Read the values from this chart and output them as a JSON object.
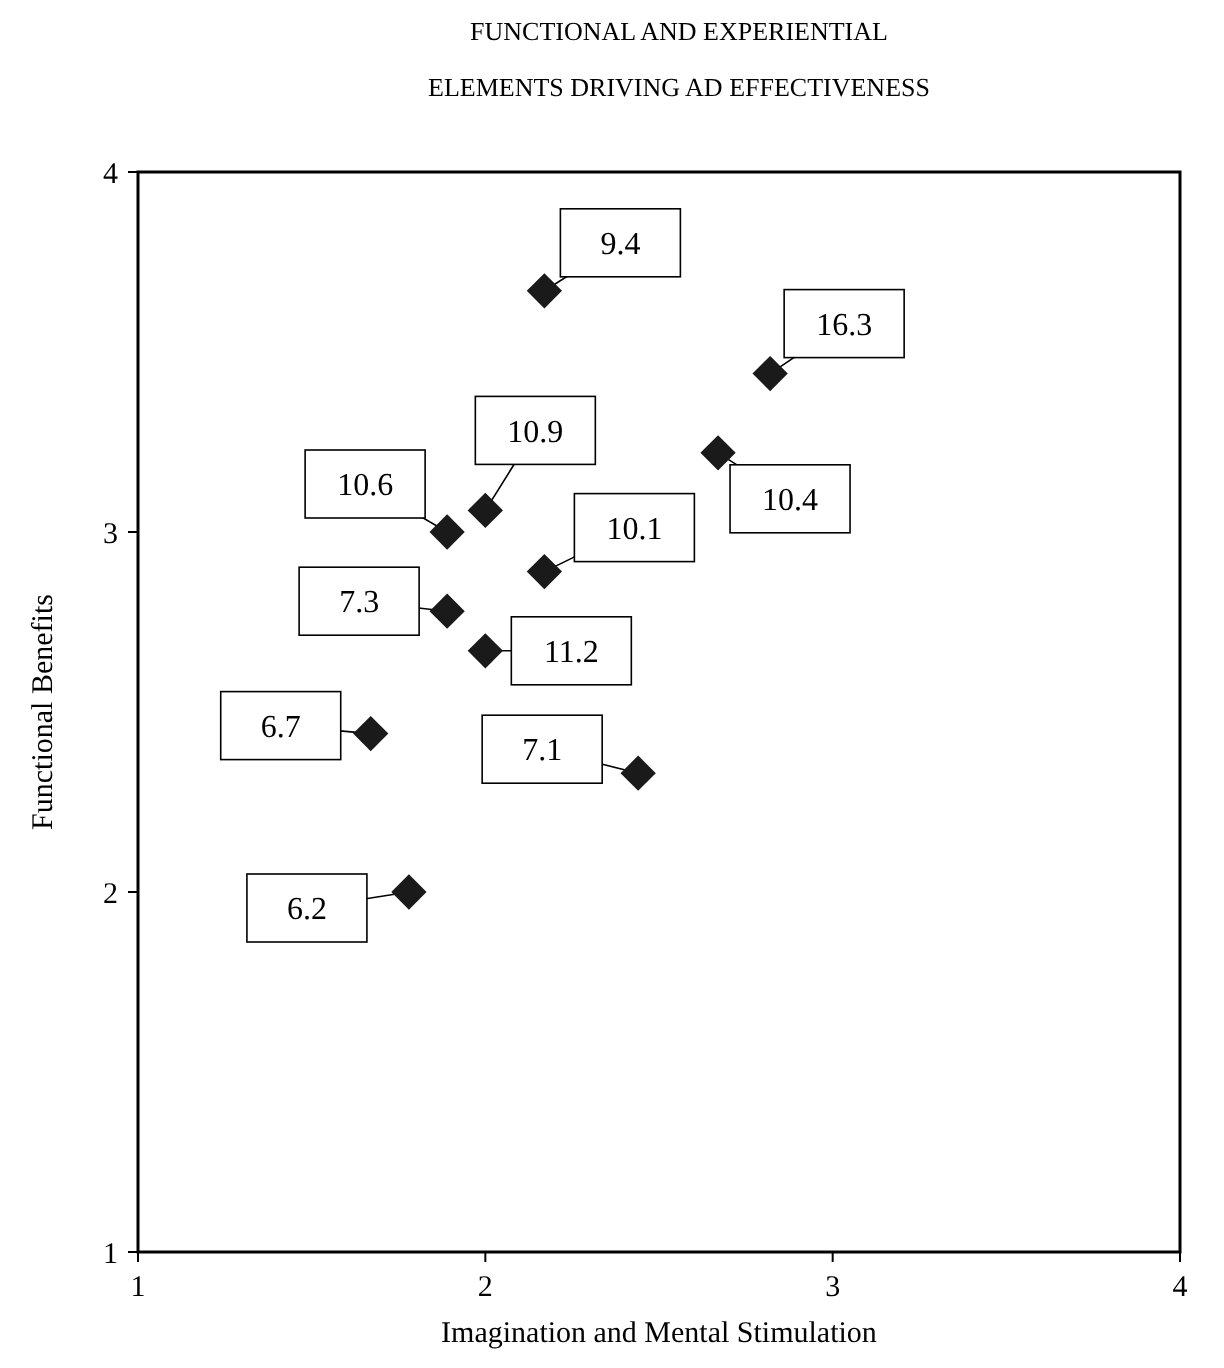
{
  "chart_data": {
    "type": "scatter",
    "title": "FUNCTIONAL AND EXPERIENTIAL ELEMENTS DRIVING AD EFFECTIVENESS",
    "xlabel": "Imagination and Mental Stimulation",
    "ylabel": "Functional Benefits",
    "x": [
      2.17,
      2.82,
      2.0,
      1.89,
      2.67,
      2.17,
      1.89,
      2.0,
      1.67,
      2.44,
      1.78
    ],
    "values": [
      3.67,
      3.44,
      3.06,
      3.0,
      3.22,
      2.89,
      2.78,
      2.67,
      2.44,
      2.33,
      2.0
    ],
    "annotations": [
      {
        "text": "9.4",
        "x": 2.17,
        "y": 3.67
      },
      {
        "text": "16.3",
        "x": 2.82,
        "y": 3.44
      },
      {
        "text": "10.9",
        "x": 2.0,
        "y": 3.06
      },
      {
        "text": "10.6",
        "x": 1.89,
        "y": 3.0
      },
      {
        "text": "10.4",
        "x": 2.67,
        "y": 3.22
      },
      {
        "text": "10.1",
        "x": 2.17,
        "y": 2.89
      },
      {
        "text": "7.3",
        "x": 1.89,
        "y": 2.78
      },
      {
        "text": "11.2",
        "x": 2.0,
        "y": 2.67
      },
      {
        "text": "6.7",
        "x": 1.67,
        "y": 2.44
      },
      {
        "text": "7.1",
        "x": 2.44,
        "y": 2.33
      },
      {
        "text": "6.2",
        "x": 1.78,
        "y": 2.0
      }
    ],
    "color": "#1a1a1a",
    "marker": "diamond",
    "grid": false,
    "xlim": [
      1,
      4
    ],
    "xticks": [
      1,
      2,
      3,
      4
    ],
    "ylim": [
      1,
      4
    ],
    "yticks": [
      1,
      2,
      3,
      4
    ]
  }
}
